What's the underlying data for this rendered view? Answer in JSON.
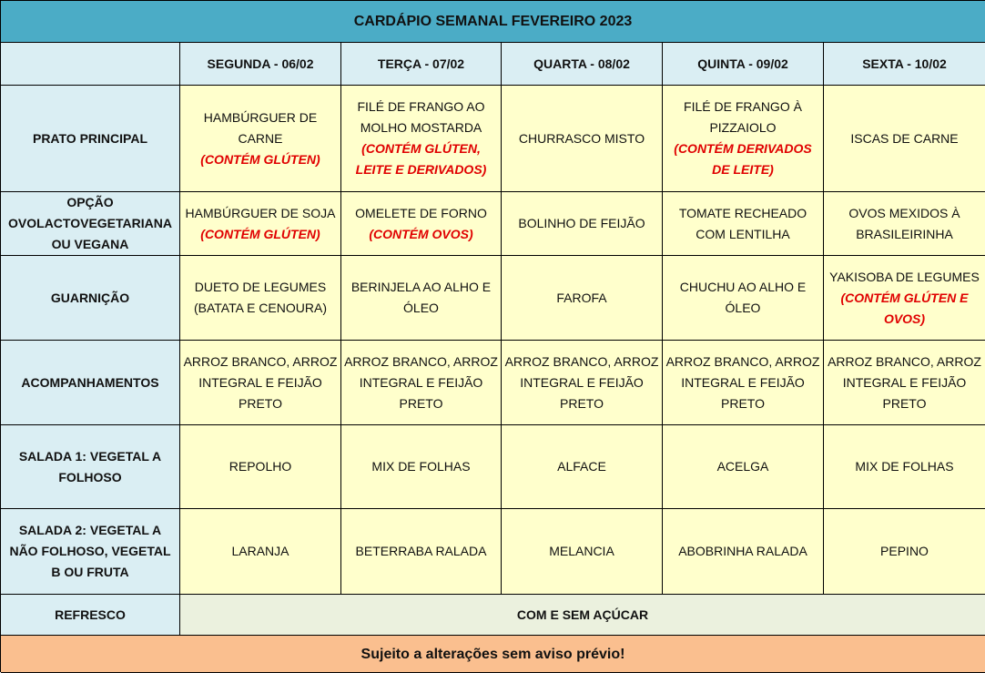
{
  "title": "CARDÁPIO SEMANAL FEVEREIRO 2023",
  "days": [
    "SEGUNDA - 06/02",
    "TERÇA - 07/02",
    "QUARTA - 08/02",
    "QUINTA - 09/02",
    "SEXTA - 10/02"
  ],
  "rows": [
    {
      "label": "PRATO PRINCIPAL",
      "cells": [
        {
          "text": "HAMBÚRGUER DE CARNE",
          "allergen": "(CONTÉM GLÚTEN)"
        },
        {
          "text": "FILÉ DE FRANGO AO MOLHO MOSTARDA",
          "allergen": "(CONTÉM GLÚTEN, LEITE E DERIVADOS)"
        },
        {
          "text": "CHURRASCO MISTO"
        },
        {
          "text": "FILÉ DE FRANGO À PIZZAIOLO",
          "allergen": "(CONTÉM DERIVADOS DE LEITE)"
        },
        {
          "text": "ISCAS DE CARNE"
        }
      ]
    },
    {
      "label": "OPÇÃO OVOLACTOVEGETARIANA OU VEGANA",
      "cells": [
        {
          "text": "HAMBÚRGUER DE SOJA",
          "allergen": "(CONTÉM GLÚTEN)"
        },
        {
          "text": "OMELETE DE FORNO",
          "allergen": "(CONTÉM OVOS)"
        },
        {
          "text": "BOLINHO DE FEIJÃO"
        },
        {
          "text": "TOMATE RECHEADO COM LENTILHA"
        },
        {
          "text": "OVOS MEXIDOS À BRASILEIRINHA"
        }
      ]
    },
    {
      "label": "GUARNIÇÃO",
      "cells": [
        {
          "text": "DUETO DE LEGUMES (BATATA E CENOURA)"
        },
        {
          "text": "BERINJELA AO ALHO E ÓLEO"
        },
        {
          "text": "FAROFA"
        },
        {
          "text": "CHUCHU AO ALHO E ÓLEO"
        },
        {
          "text": "YAKISOBA DE LEGUMES",
          "allergen": "(CONTÉM GLÚTEN E OVOS)"
        }
      ]
    },
    {
      "label": "ACOMPANHAMENTOS",
      "cells": [
        {
          "text": "ARROZ BRANCO, ARROZ INTEGRAL E FEIJÃO PRETO"
        },
        {
          "text": "ARROZ BRANCO, ARROZ INTEGRAL E FEIJÃO PRETO"
        },
        {
          "text": "ARROZ BRANCO, ARROZ INTEGRAL E FEIJÃO PRETO"
        },
        {
          "text": "ARROZ BRANCO, ARROZ INTEGRAL E FEIJÃO PRETO"
        },
        {
          "text": "ARROZ BRANCO, ARROZ INTEGRAL E FEIJÃO PRETO"
        }
      ]
    },
    {
      "label": "SALADA 1: VEGETAL A FOLHOSO",
      "cells": [
        {
          "text": "REPOLHO"
        },
        {
          "text": "MIX DE FOLHAS"
        },
        {
          "text": "ALFACE"
        },
        {
          "text": "ACELGA"
        },
        {
          "text": "MIX DE FOLHAS"
        }
      ]
    },
    {
      "label": "SALADA 2: VEGETAL A NÃO FOLHOSO,   VEGETAL B OU FRUTA",
      "cells": [
        {
          "text": "LARANJA"
        },
        {
          "text": "BETERRABA RALADA"
        },
        {
          "text": "MELANCIA"
        },
        {
          "text": "ABOBRINHA RALADA"
        },
        {
          "text": "PEPINO"
        }
      ]
    }
  ],
  "refresco": {
    "label": "REFRESCO",
    "value": "COM E SEM AÇÚCAR"
  },
  "footer": "Sujeito a alterações sem aviso prévio!",
  "colors": {
    "title_bg": "#4bacc6",
    "header_bg": "#daeef3",
    "cell_bg": "#ffffcc",
    "refresco_bg": "#ebf1de",
    "footer_bg": "#fabf8f",
    "allergen": "#e00000"
  }
}
